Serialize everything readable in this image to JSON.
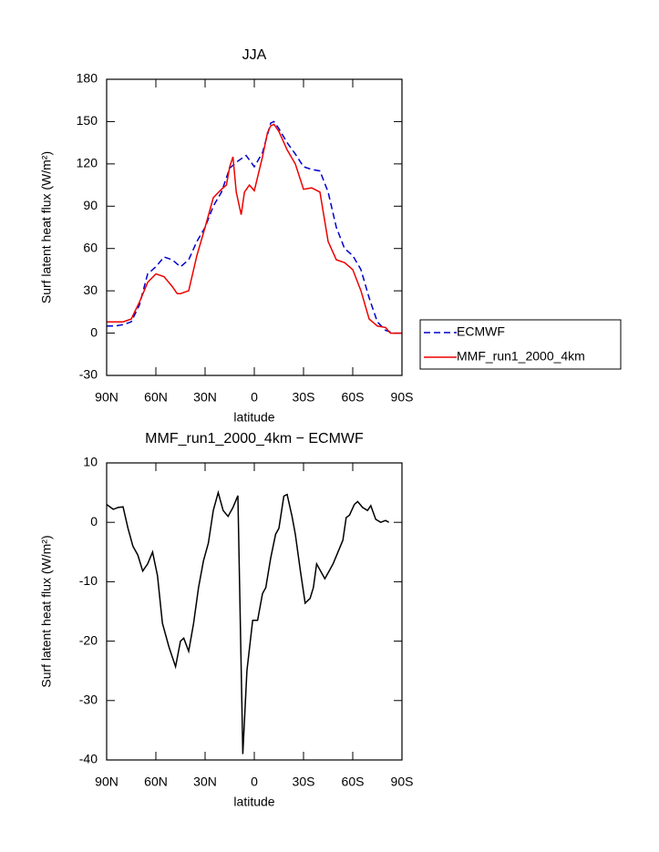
{
  "chart_data": [
    {
      "type": "line",
      "title": "JJA",
      "xlabel": "latitude",
      "ylabel": "Surf latent heat flux (W/m²)",
      "xlim": [
        90,
        -90
      ],
      "xticks": [
        {
          "value": 90,
          "label": "90N"
        },
        {
          "value": 60,
          "label": "60N"
        },
        {
          "value": 30,
          "label": "30N"
        },
        0,
        {
          "value": -30,
          "label": "30S"
        },
        {
          "value": -60,
          "label": "60S"
        },
        {
          "value": -90,
          "label": "90S"
        }
      ],
      "ylim": [
        -30,
        180
      ],
      "yticks": [
        -30,
        0,
        30,
        60,
        90,
        120,
        150,
        180
      ],
      "legend": "right",
      "series": [
        {
          "name": "ECMWF",
          "color": "#0000cc",
          "line_style": "dashed",
          "x": [
            90,
            85,
            80,
            75,
            70,
            65,
            60,
            55,
            50,
            45,
            40,
            35,
            30,
            25,
            20,
            15,
            10,
            5,
            0,
            -5,
            -10,
            -12,
            -15,
            -20,
            -25,
            -30,
            -35,
            -40,
            -45,
            -50,
            -55,
            -60,
            -65,
            -70,
            -75,
            -80,
            -85,
            -90
          ],
          "values": [
            5,
            5,
            6,
            8,
            20,
            42,
            47,
            54,
            52,
            47,
            52,
            65,
            75,
            90,
            100,
            117,
            122,
            126,
            118,
            128,
            149,
            150,
            145,
            135,
            127,
            118,
            116,
            115,
            100,
            75,
            60,
            55,
            45,
            25,
            8,
            2,
            0,
            0
          ]
        },
        {
          "name": "MMF_run1_2000_4km",
          "color": "#ee0000",
          "line_style": "solid",
          "x": [
            90,
            85,
            80,
            75,
            70,
            65,
            60,
            55,
            50,
            47,
            45,
            40,
            35,
            30,
            25,
            20,
            17,
            15,
            13,
            11,
            8,
            6,
            3,
            0,
            -5,
            -8,
            -10,
            -12,
            -15,
            -20,
            -25,
            -30,
            -35,
            -40,
            -45,
            -50,
            -55,
            -60,
            -65,
            -70,
            -75,
            -80,
            -83,
            -90
          ],
          "values": [
            8,
            8,
            8,
            10,
            22,
            36,
            42,
            40,
            33,
            28,
            28,
            30,
            55,
            75,
            96,
            102,
            105,
            118,
            125,
            100,
            84,
            100,
            105,
            101,
            125,
            142,
            147,
            148,
            143,
            130,
            120,
            102,
            103,
            100,
            65,
            52,
            50,
            45,
            30,
            10,
            5,
            4,
            0,
            0
          ]
        }
      ]
    },
    {
      "type": "line",
      "title": "MMF_run1_2000_4km − ECMWF",
      "xlabel": "latitude",
      "ylabel": "Surf latent heat flux (W/m²)",
      "xlim": [
        90,
        -90
      ],
      "xticks": [
        {
          "value": 90,
          "label": "90N"
        },
        {
          "value": 60,
          "label": "60N"
        },
        {
          "value": 30,
          "label": "30N"
        },
        0,
        {
          "value": -30,
          "label": "30S"
        },
        {
          "value": -60,
          "label": "60S"
        },
        {
          "value": -90,
          "label": "90S"
        }
      ],
      "ylim": [
        -40,
        10
      ],
      "yticks": [
        -40,
        -30,
        -20,
        -10,
        0,
        10
      ],
      "series": [
        {
          "color": "#000000",
          "line_style": "solid",
          "x": [
            90,
            86,
            83,
            80,
            77,
            74,
            71,
            68,
            65,
            62,
            59,
            56,
            52,
            48,
            45,
            43,
            40,
            37,
            34,
            31,
            28,
            25,
            22,
            19,
            16,
            13,
            10,
            7,
            4.5,
            1,
            -2,
            -5,
            -7,
            -10,
            -13,
            -15,
            -18,
            -20,
            -23,
            -25,
            -28,
            -31,
            -34,
            -36,
            -38,
            -41,
            -43,
            -46,
            -48,
            -51,
            -54,
            -56,
            -58,
            -61,
            -63,
            -66,
            -69,
            -71,
            -74,
            -77,
            -80,
            -82
          ],
          "values": [
            3,
            2.2,
            2.5,
            2.6,
            -1,
            -4,
            -5.5,
            -8.2,
            -7,
            -5,
            -9,
            -17,
            -21,
            -24.3,
            -20,
            -19.5,
            -21.7,
            -17,
            -11,
            -6.5,
            -3.5,
            2,
            5,
            2,
            1,
            2.5,
            4.5,
            -39,
            -25,
            -16.5,
            -16.5,
            -12,
            -11,
            -6,
            -2,
            -1,
            4.4,
            4.7,
            1,
            -2,
            -8,
            -13.6,
            -12.8,
            -11,
            -7,
            -8.5,
            -9.5,
            -8,
            -7,
            -5,
            -3,
            0.8,
            1.2,
            3,
            3.5,
            2.5,
            2,
            2.8,
            0.5,
            0,
            0.3,
            0
          ]
        }
      ]
    }
  ]
}
